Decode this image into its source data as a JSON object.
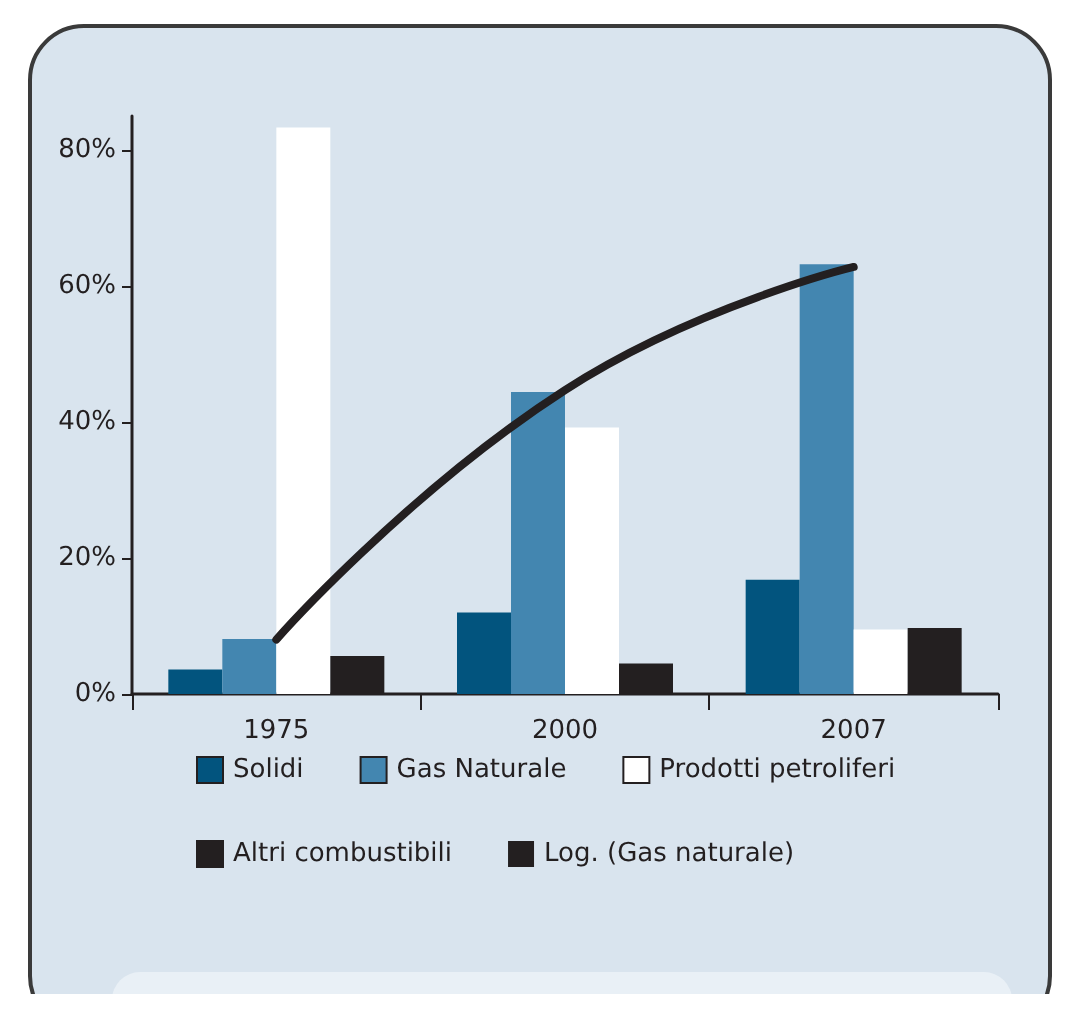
{
  "chart_data": {
    "type": "bar",
    "categories": [
      "1975",
      "2000",
      "2007"
    ],
    "series": [
      {
        "name": "Solidi",
        "color": "#02547e",
        "values": [
          3.6,
          12.0,
          16.8
        ]
      },
      {
        "name": "Gas Naturale",
        "color": "#4386b0",
        "values": [
          8.1,
          44.4,
          63.2
        ]
      },
      {
        "name": "Prodotti petroliferi",
        "color": "#ffffff",
        "values": [
          83.3,
          39.2,
          9.5
        ]
      },
      {
        "name": "Altri combustibili",
        "color": "#231f20",
        "values": [
          5.6,
          4.5,
          9.7
        ]
      },
      {
        "name": "Log. (Gas naturale)",
        "type": "line",
        "color": "#231f20",
        "values": [
          8.0,
          44.7,
          62.8
        ]
      }
    ],
    "ylim": [
      0,
      85
    ],
    "yticks": [
      {
        "value": 0,
        "label": "0%"
      },
      {
        "value": 20,
        "label": "20%"
      },
      {
        "value": 40,
        "label": "40%"
      },
      {
        "value": 60,
        "label": "60%"
      },
      {
        "value": 80,
        "label": "80%"
      }
    ],
    "grid": false,
    "legend": "bottom",
    "marker": "none",
    "line_style": "solid"
  }
}
